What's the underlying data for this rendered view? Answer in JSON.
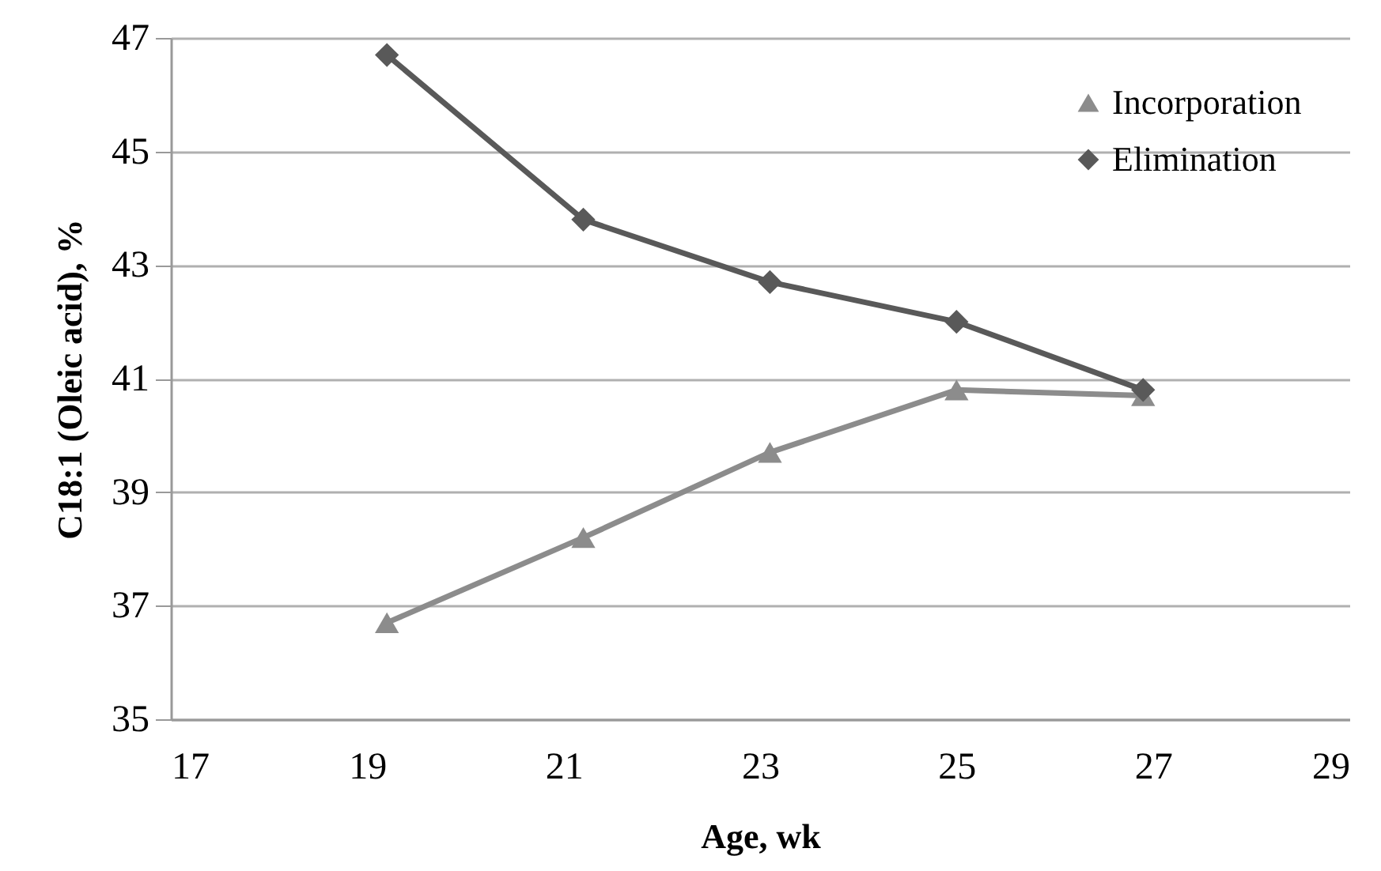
{
  "chart_data": {
    "type": "line",
    "xlabel": "Age, wk",
    "ylabel": "C18:1 (Oleic acid), %",
    "x": [
      19.2,
      21.2,
      23.1,
      25.0,
      26.9
    ],
    "series": [
      {
        "name": "Incorporation",
        "color": "#8c8c8c",
        "marker": "triangle",
        "values": [
          36.7,
          38.2,
          39.7,
          40.8,
          40.7
        ]
      },
      {
        "name": "Elimination",
        "color": "#595959",
        "marker": "diamond",
        "values": [
          46.7,
          43.8,
          42.7,
          42.0,
          40.8
        ]
      }
    ],
    "xlim": [
      17,
      29
    ],
    "xticks": [
      17,
      19,
      21,
      23,
      25,
      27,
      29
    ],
    "ylim": [
      35,
      47
    ],
    "yticks": [
      35,
      37,
      39,
      41,
      43,
      45,
      47
    ],
    "grid": "y",
    "legend": "top right",
    "line_style": "solid"
  }
}
